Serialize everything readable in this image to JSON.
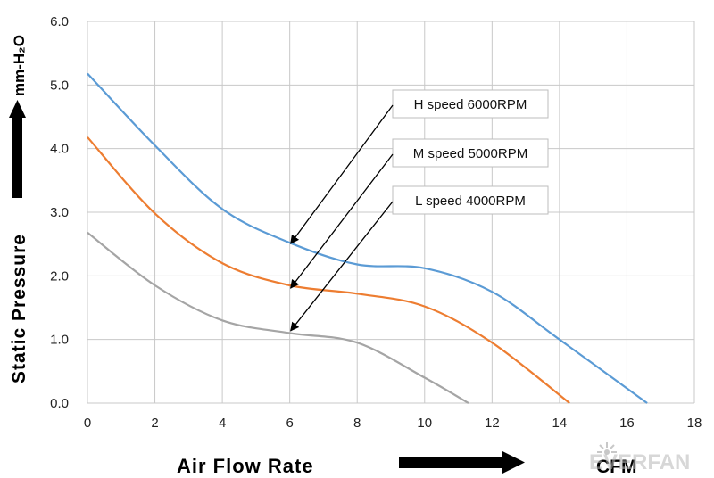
{
  "chart_data": {
    "type": "line",
    "xlabel": "Air  Flow  Rate",
    "xunit": "CFM",
    "ylabel": "Static   Pressure",
    "yunit": "mm-H₂O",
    "xlim": [
      0,
      18
    ],
    "ylim": [
      0,
      6
    ],
    "x_ticks": [
      0,
      2,
      4,
      6,
      8,
      10,
      12,
      14,
      16,
      18
    ],
    "y_ticks": [
      "0.0",
      "1.0",
      "2.0",
      "3.0",
      "4.0",
      "5.0",
      "6.0"
    ],
    "grid": true,
    "series": [
      {
        "name": "H  speed  6000RPM",
        "color": "#5b9bd5",
        "points": [
          [
            0,
            5.18
          ],
          [
            2,
            4.05
          ],
          [
            4,
            3.05
          ],
          [
            6,
            2.52
          ],
          [
            8,
            2.18
          ],
          [
            10,
            2.12
          ],
          [
            12,
            1.75
          ],
          [
            14,
            1.0
          ],
          [
            16.6,
            0
          ]
        ]
      },
      {
        "name": "M  speed  5000RPM",
        "color": "#ed7d31",
        "points": [
          [
            0,
            4.18
          ],
          [
            2,
            2.98
          ],
          [
            4,
            2.2
          ],
          [
            6,
            1.85
          ],
          [
            8,
            1.72
          ],
          [
            10,
            1.52
          ],
          [
            12,
            0.95
          ],
          [
            14.3,
            0
          ]
        ]
      },
      {
        "name": "L  speed  4000RPM",
        "color": "#a5a5a5",
        "points": [
          [
            0,
            2.68
          ],
          [
            2,
            1.85
          ],
          [
            4,
            1.3
          ],
          [
            6,
            1.1
          ],
          [
            8,
            0.95
          ],
          [
            10,
            0.4
          ],
          [
            11.3,
            0
          ]
        ]
      }
    ],
    "annotations": [
      {
        "label": "H  speed  6000RPM",
        "target": [
          6,
          2.55
        ]
      },
      {
        "label": "M  speed  5000RPM",
        "target": [
          6,
          1.85
        ]
      },
      {
        "label": "L  speed  4000RPM",
        "target": [
          6,
          1.18
        ]
      }
    ]
  },
  "watermark": "EVERFAN",
  "watermark_icon": "sun-burst-icon"
}
